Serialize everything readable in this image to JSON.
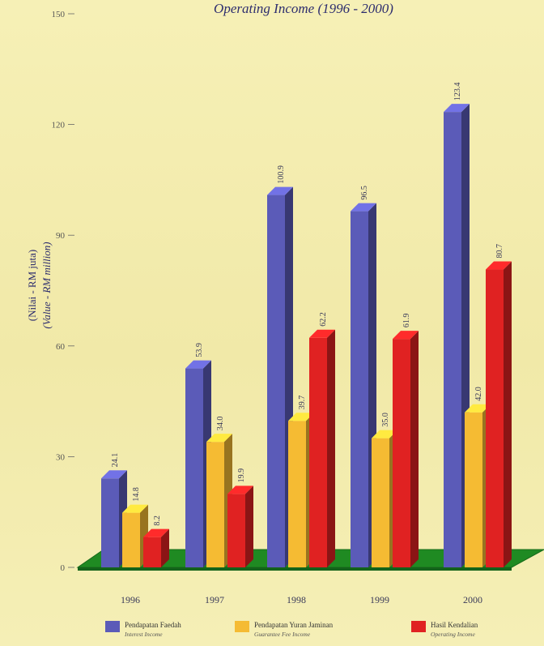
{
  "chart_data": {
    "type": "bar",
    "title": "Operating Income (1996 - 2000)",
    "ylabel": "(Nilai - RM juta)",
    "ylabel_en": "(Value - RM million)",
    "ylim": [
      0,
      150
    ],
    "yticks": [
      0,
      30,
      60,
      90,
      120,
      150
    ],
    "ytick_labels": [
      "0",
      "30",
      "60",
      "90",
      "120",
      "150"
    ],
    "categories": [
      "1996",
      "1997",
      "1998",
      "1999",
      "2000"
    ],
    "series": [
      {
        "name": "Pendapatan Faedah",
        "name_en": "Interest Income",
        "color": "#5b5bb8",
        "values": [
          24.1,
          53.9,
          100.9,
          96.5,
          123.4
        ],
        "labels": [
          "24.1",
          "53.9",
          "100.9",
          "96.5",
          "123.4"
        ]
      },
      {
        "name": "Pendapatan Yuran Jaminan",
        "name_en": "Guarantee Fee Income",
        "color": "#f5bb33",
        "values": [
          14.8,
          34.0,
          39.7,
          35.0,
          42.0
        ],
        "labels": [
          "14.8",
          "34.0",
          "39.7",
          "35.0",
          "42.0"
        ]
      },
      {
        "name": "Hasil Kendalian",
        "name_en": "Operating Income",
        "color": "#e02222",
        "values": [
          8.2,
          19.9,
          62.2,
          61.9,
          80.7
        ],
        "labels": [
          "8.2",
          "19.9",
          "62.2",
          "61.9",
          "80.7"
        ]
      }
    ],
    "grid": false,
    "legend_position": "bottom"
  }
}
